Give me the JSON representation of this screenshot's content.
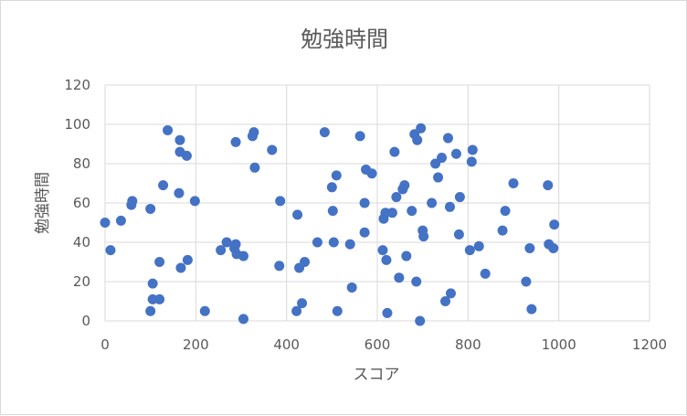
{
  "chart_data": {
    "type": "scatter",
    "title": "勉強時間",
    "xlabel": "スコア",
    "ylabel": "勉強時間",
    "xlim": [
      0,
      1200
    ],
    "ylim": [
      0,
      120
    ],
    "x_ticks": [
      "0",
      "200",
      "400",
      "600",
      "800",
      "1000",
      "1200"
    ],
    "y_ticks": [
      "0",
      "20",
      "40",
      "60",
      "80",
      "100",
      "120"
    ],
    "grid": true,
    "legend": "none",
    "marker_color": "#4472c4",
    "points": [
      [
        0,
        50
      ],
      [
        12,
        36
      ],
      [
        35,
        51
      ],
      [
        58,
        59
      ],
      [
        60,
        61
      ],
      [
        100,
        57
      ],
      [
        100,
        5
      ],
      [
        105,
        19
      ],
      [
        105,
        11
      ],
      [
        120,
        11
      ],
      [
        120,
        30
      ],
      [
        128,
        69
      ],
      [
        138,
        97
      ],
      [
        165,
        92
      ],
      [
        165,
        86
      ],
      [
        163,
        65
      ],
      [
        167,
        27
      ],
      [
        180,
        84
      ],
      [
        182,
        31
      ],
      [
        198,
        61
      ],
      [
        220,
        5
      ],
      [
        255,
        36
      ],
      [
        268,
        40
      ],
      [
        285,
        37
      ],
      [
        288,
        39
      ],
      [
        288,
        91
      ],
      [
        290,
        34
      ],
      [
        305,
        33
      ],
      [
        305,
        1
      ],
      [
        325,
        94
      ],
      [
        328,
        96
      ],
      [
        330,
        78
      ],
      [
        368,
        87
      ],
      [
        384,
        28
      ],
      [
        386,
        61
      ],
      [
        422,
        5
      ],
      [
        424,
        54
      ],
      [
        428,
        27
      ],
      [
        434,
        9
      ],
      [
        440,
        30
      ],
      [
        468,
        40
      ],
      [
        484,
        96
      ],
      [
        500,
        68
      ],
      [
        502,
        56
      ],
      [
        504,
        40
      ],
      [
        510,
        74
      ],
      [
        512,
        5
      ],
      [
        540,
        39
      ],
      [
        544,
        17
      ],
      [
        562,
        94
      ],
      [
        572,
        45
      ],
      [
        572,
        60
      ],
      [
        575,
        77
      ],
      [
        588,
        75
      ],
      [
        612,
        36
      ],
      [
        614,
        52
      ],
      [
        618,
        55
      ],
      [
        620,
        31
      ],
      [
        622,
        4
      ],
      [
        633,
        55
      ],
      [
        638,
        86
      ],
      [
        642,
        63
      ],
      [
        648,
        22
      ],
      [
        656,
        67
      ],
      [
        660,
        69
      ],
      [
        664,
        33
      ],
      [
        676,
        56
      ],
      [
        682,
        95
      ],
      [
        686,
        20
      ],
      [
        688,
        92
      ],
      [
        694,
        0
      ],
      [
        696,
        98
      ],
      [
        700,
        46
      ],
      [
        702,
        43
      ],
      [
        720,
        60
      ],
      [
        728,
        80
      ],
      [
        734,
        73
      ],
      [
        742,
        83
      ],
      [
        750,
        10
      ],
      [
        756,
        93
      ],
      [
        760,
        58
      ],
      [
        762,
        14
      ],
      [
        774,
        85
      ],
      [
        780,
        44
      ],
      [
        782,
        63
      ],
      [
        804,
        36
      ],
      [
        808,
        81
      ],
      [
        810,
        87
      ],
      [
        824,
        38
      ],
      [
        838,
        24
      ],
      [
        876,
        46
      ],
      [
        882,
        56
      ],
      [
        900,
        70
      ],
      [
        928,
        20
      ],
      [
        936,
        37
      ],
      [
        940,
        6
      ],
      [
        976,
        69
      ],
      [
        978,
        39
      ],
      [
        988,
        37
      ],
      [
        990,
        49
      ]
    ]
  }
}
